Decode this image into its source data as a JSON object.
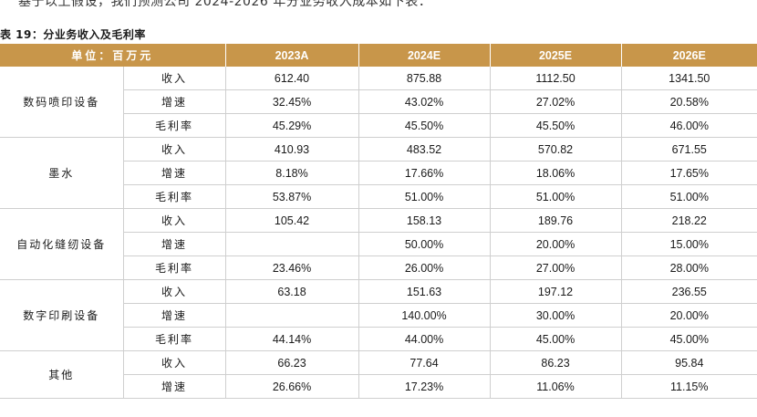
{
  "intro_text": "基于以上假设，我们预测公司 2024-2026 年分业务收入成本如下表：",
  "caption": "表 19：分业务收入及毛利率",
  "header": {
    "unit": "单位：百万元",
    "years": [
      "2023A",
      "2024E",
      "2025E",
      "2026E"
    ]
  },
  "segments": [
    {
      "name": "数码喷印设备",
      "rows": [
        {
          "metric": "收入",
          "values": [
            "612.40",
            "875.88",
            "1112.50",
            "1341.50"
          ]
        },
        {
          "metric": "增速",
          "values": [
            "32.45%",
            "43.02%",
            "27.02%",
            "20.58%"
          ]
        },
        {
          "metric": "毛利率",
          "values": [
            "45.29%",
            "45.50%",
            "45.50%",
            "46.00%"
          ]
        }
      ]
    },
    {
      "name": "墨水",
      "rows": [
        {
          "metric": "收入",
          "values": [
            "410.93",
            "483.52",
            "570.82",
            "671.55"
          ]
        },
        {
          "metric": "增速",
          "values": [
            "8.18%",
            "17.66%",
            "18.06%",
            "17.65%"
          ]
        },
        {
          "metric": "毛利率",
          "values": [
            "53.87%",
            "51.00%",
            "51.00%",
            "51.00%"
          ]
        }
      ]
    },
    {
      "name": "自动化缝纫设备",
      "rows": [
        {
          "metric": "收入",
          "values": [
            "105.42",
            "158.13",
            "189.76",
            "218.22"
          ]
        },
        {
          "metric": "增速",
          "values": [
            "",
            "50.00%",
            "20.00%",
            "15.00%"
          ]
        },
        {
          "metric": "毛利率",
          "values": [
            "23.46%",
            "26.00%",
            "27.00%",
            "28.00%"
          ]
        }
      ]
    },
    {
      "name": "数字印刷设备",
      "rows": [
        {
          "metric": "收入",
          "values": [
            "63.18",
            "151.63",
            "197.12",
            "236.55"
          ]
        },
        {
          "metric": "增速",
          "values": [
            "",
            "140.00%",
            "30.00%",
            "20.00%"
          ]
        },
        {
          "metric": "毛利率",
          "values": [
            "44.14%",
            "44.00%",
            "45.00%",
            "45.00%"
          ]
        }
      ]
    },
    {
      "name": "其他",
      "rows": [
        {
          "metric": "收入",
          "values": [
            "66.23",
            "77.64",
            "86.23",
            "95.84"
          ]
        },
        {
          "metric": "增速",
          "values": [
            "26.66%",
            "17.23%",
            "11.06%",
            "11.15%"
          ]
        }
      ]
    }
  ]
}
